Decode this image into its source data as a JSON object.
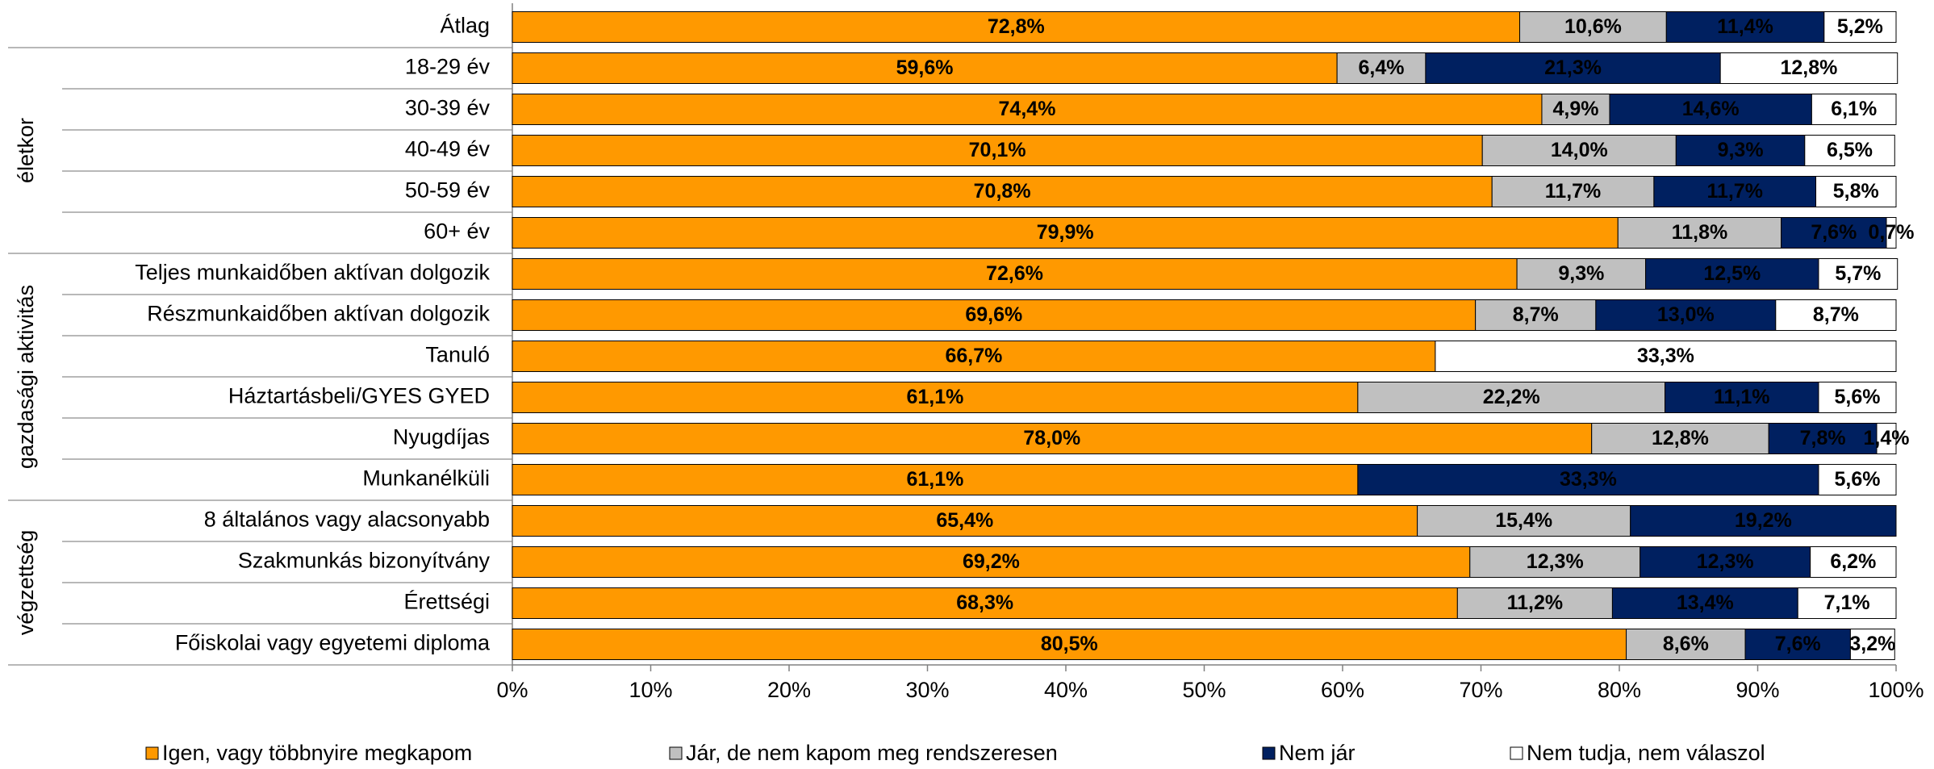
{
  "chart_data": {
    "type": "stacked-bar-horizontal",
    "categories": [
      "Átlag",
      "18-29 év",
      "30-39 év",
      "40-49 év",
      "50-59 év",
      "60+ év",
      "Teljes munkaidőben aktívan dolgozik",
      "Részmunkaidőben aktívan dolgozik",
      "Tanuló",
      "Háztartásbeli/GYES GYED",
      "Nyugdíjas",
      "Munkanélküli",
      "8 általános vagy alacsonyabb",
      "Szakmunkás bizonyítvány",
      "Érettségi",
      "Főiskolai vagy egyetemi diploma"
    ],
    "groups": [
      "életkor",
      "gazdasági aktivitás",
      "végzettség"
    ],
    "series": [
      {
        "name": "Igen, vagy többnyire megkapom",
        "color": "#ff9900",
        "values": [
          72.8,
          59.6,
          74.4,
          70.1,
          70.8,
          79.9,
          72.6,
          69.6,
          66.7,
          61.1,
          78.0,
          61.1,
          65.4,
          69.2,
          68.3,
          80.5
        ],
        "value_labels": [
          "72,8%",
          "59,6%",
          "74,4%",
          "70,1%",
          "70,8%",
          "79,9%",
          "72,6%",
          "69,6%",
          "66,7%",
          "61,1%",
          "78,0%",
          "61,1%",
          "65,4%",
          "69,2%",
          "68,3%",
          "80,5%"
        ]
      },
      {
        "name": "Jár, de nem kapom meg rendszeresen",
        "color": "#c0c0c0",
        "values": [
          10.6,
          6.4,
          4.9,
          14.0,
          11.7,
          11.8,
          9.3,
          8.7,
          null,
          22.2,
          12.8,
          null,
          15.4,
          12.3,
          11.2,
          8.6
        ],
        "value_labels": [
          "10,6%",
          "6,4%",
          "4,9%",
          "14,0%",
          "11,7%",
          "11,8%",
          "9,3%",
          "8,7%",
          null,
          "22,2%",
          "12,8%",
          null,
          "15,4%",
          "12,3%",
          "11,2%",
          "8,6%"
        ]
      },
      {
        "name": "Nem jár",
        "color": "#002060",
        "values": [
          11.4,
          21.3,
          14.6,
          9.3,
          11.7,
          7.6,
          12.5,
          13.0,
          null,
          11.1,
          7.8,
          33.3,
          19.2,
          12.3,
          13.4,
          7.6
        ],
        "value_labels": [
          "11,4%",
          "21,3%",
          "14,6%",
          "9,3%",
          "11,7%",
          "7,6%",
          "12,5%",
          "13,0%",
          null,
          "11,1%",
          "7,8%",
          "33,3%",
          "19,2%",
          "12,3%",
          "13,4%",
          "7,6%"
        ]
      },
      {
        "name": "Nem tudja, nem válaszol",
        "color": "#ffffff",
        "values": [
          5.2,
          12.8,
          6.1,
          6.5,
          5.8,
          0.7,
          5.7,
          8.7,
          33.3,
          5.6,
          1.4,
          5.6,
          null,
          6.2,
          7.1,
          3.2
        ],
        "value_labels": [
          "5,2%",
          "12,8%",
          "6,1%",
          "6,5%",
          "5,8%",
          "0,7%",
          "5,7%",
          "8,7%",
          "33,3%",
          "5,6%",
          "1,4%",
          "5,6%",
          null,
          "6,2%",
          "7,1%",
          "3,2%"
        ]
      }
    ],
    "xlim": [
      0,
      100
    ],
    "xticks": [
      {
        "value": 0,
        "label": "0%"
      },
      {
        "value": 10,
        "label": "10%"
      },
      {
        "value": 20,
        "label": "20%"
      },
      {
        "value": 30,
        "label": "30%"
      },
      {
        "value": 40,
        "label": "40%"
      },
      {
        "value": 50,
        "label": "50%"
      },
      {
        "value": 60,
        "label": "60%"
      },
      {
        "value": 70,
        "label": "70%"
      },
      {
        "value": 80,
        "label": "80%"
      },
      {
        "value": 90,
        "label": "90%"
      },
      {
        "value": 100,
        "label": "100%"
      }
    ]
  }
}
